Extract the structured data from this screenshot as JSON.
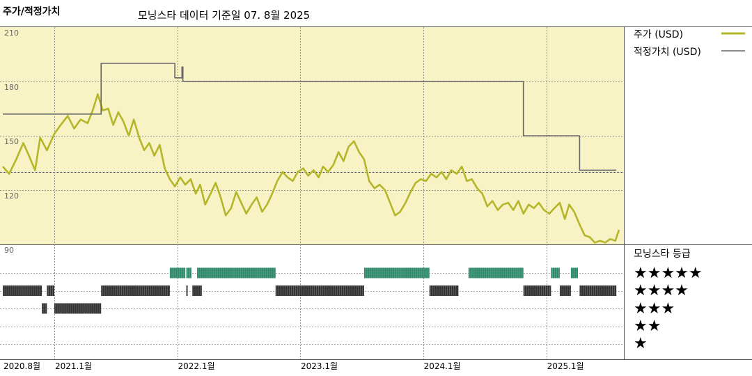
{
  "title": "주가/적정가치",
  "subtitle": "모닝스타 데이터 기준일 07. 8월 2025",
  "chart_data": {
    "type": "line",
    "y_axis": {
      "ticks": [
        "210",
        "180",
        "150",
        "120",
        "90"
      ],
      "ylim": [
        90,
        210
      ],
      "grid": true
    },
    "x_axis": {
      "ticks": [
        {
          "label": "2020.8월",
          "date": "2020-08-01"
        },
        {
          "label": "2021.1월",
          "date": "2021-01-01"
        },
        {
          "label": "2022.1월",
          "date": "2022-01-01"
        },
        {
          "label": "2023.1월",
          "date": "2023-01-01"
        },
        {
          "label": "2024.1월",
          "date": "2024-01-01"
        },
        {
          "label": "2025.1월",
          "date": "2025-01-01"
        }
      ],
      "xlim": [
        "2020-08-01",
        "2025-08-07"
      ]
    },
    "series": [
      {
        "name": "주가 (USD)",
        "color": "#b5b52a",
        "points": [
          [
            "2020-08-01",
            133
          ],
          [
            "2020-08-20",
            129
          ],
          [
            "2020-09-10",
            137
          ],
          [
            "2020-10-01",
            146
          ],
          [
            "2020-10-20",
            138
          ],
          [
            "2020-11-05",
            131
          ],
          [
            "2020-11-20",
            149
          ],
          [
            "2020-12-10",
            142
          ],
          [
            "2021-01-01",
            151
          ],
          [
            "2021-01-20",
            156
          ],
          [
            "2021-02-10",
            161
          ],
          [
            "2021-03-01",
            154
          ],
          [
            "2021-03-20",
            159
          ],
          [
            "2021-04-10",
            157
          ],
          [
            "2021-04-25",
            164
          ],
          [
            "2021-05-10",
            173
          ],
          [
            "2021-05-25",
            164
          ],
          [
            "2021-06-10",
            165
          ],
          [
            "2021-06-25",
            156
          ],
          [
            "2021-07-10",
            163
          ],
          [
            "2021-07-25",
            158
          ],
          [
            "2021-08-10",
            150
          ],
          [
            "2021-08-25",
            159
          ],
          [
            "2021-09-10",
            149
          ],
          [
            "2021-09-25",
            142
          ],
          [
            "2021-10-10",
            146
          ],
          [
            "2021-10-25",
            139
          ],
          [
            "2021-11-10",
            145
          ],
          [
            "2021-11-25",
            132
          ],
          [
            "2021-12-10",
            126
          ],
          [
            "2021-12-25",
            122
          ],
          [
            "2022-01-10",
            127
          ],
          [
            "2022-01-25",
            123
          ],
          [
            "2022-02-10",
            126
          ],
          [
            "2022-02-25",
            118
          ],
          [
            "2022-03-10",
            123
          ],
          [
            "2022-03-25",
            112
          ],
          [
            "2022-04-10",
            118
          ],
          [
            "2022-04-25",
            124
          ],
          [
            "2022-05-10",
            116
          ],
          [
            "2022-05-25",
            106
          ],
          [
            "2022-06-10",
            110
          ],
          [
            "2022-06-25",
            119
          ],
          [
            "2022-07-10",
            113
          ],
          [
            "2022-07-25",
            107
          ],
          [
            "2022-08-10",
            112
          ],
          [
            "2022-08-25",
            116
          ],
          [
            "2022-09-10",
            108
          ],
          [
            "2022-09-25",
            112
          ],
          [
            "2022-10-10",
            118
          ],
          [
            "2022-10-25",
            125
          ],
          [
            "2022-11-10",
            130
          ],
          [
            "2022-11-25",
            127
          ],
          [
            "2022-12-10",
            125
          ],
          [
            "2022-12-25",
            130
          ],
          [
            "2023-01-10",
            132
          ],
          [
            "2023-01-25",
            128
          ],
          [
            "2023-02-10",
            131
          ],
          [
            "2023-02-25",
            127
          ],
          [
            "2023-03-10",
            133
          ],
          [
            "2023-03-25",
            130
          ],
          [
            "2023-04-10",
            134
          ],
          [
            "2023-04-25",
            141
          ],
          [
            "2023-05-10",
            136
          ],
          [
            "2023-05-25",
            144
          ],
          [
            "2023-06-10",
            147
          ],
          [
            "2023-06-25",
            141
          ],
          [
            "2023-07-10",
            137
          ],
          [
            "2023-07-25",
            125
          ],
          [
            "2023-08-10",
            121
          ],
          [
            "2023-08-25",
            123
          ],
          [
            "2023-09-10",
            120
          ],
          [
            "2023-09-25",
            113
          ],
          [
            "2023-10-10",
            106
          ],
          [
            "2023-10-25",
            108
          ],
          [
            "2023-11-10",
            113
          ],
          [
            "2023-11-25",
            119
          ],
          [
            "2023-12-10",
            124
          ],
          [
            "2023-12-25",
            126
          ],
          [
            "2024-01-10",
            125
          ],
          [
            "2024-01-25",
            129
          ],
          [
            "2024-02-10",
            127
          ],
          [
            "2024-02-25",
            130
          ],
          [
            "2024-03-10",
            126
          ],
          [
            "2024-03-25",
            131
          ],
          [
            "2024-04-10",
            129
          ],
          [
            "2024-04-25",
            133
          ],
          [
            "2024-05-10",
            125
          ],
          [
            "2024-05-25",
            126
          ],
          [
            "2024-06-10",
            121
          ],
          [
            "2024-06-25",
            118
          ],
          [
            "2024-07-10",
            111
          ],
          [
            "2024-07-25",
            114
          ],
          [
            "2024-08-10",
            109
          ],
          [
            "2024-08-25",
            112
          ],
          [
            "2024-09-10",
            113
          ],
          [
            "2024-09-25",
            109
          ],
          [
            "2024-10-10",
            114
          ],
          [
            "2024-10-25",
            107
          ],
          [
            "2024-11-10",
            112
          ],
          [
            "2024-11-25",
            110
          ],
          [
            "2024-12-10",
            113
          ],
          [
            "2024-12-25",
            109
          ],
          [
            "2025-01-10",
            107
          ],
          [
            "2025-01-25",
            110
          ],
          [
            "2025-02-10",
            113
          ],
          [
            "2025-02-25",
            104
          ],
          [
            "2025-03-10",
            112
          ],
          [
            "2025-03-25",
            108
          ],
          [
            "2025-04-10",
            101
          ],
          [
            "2025-04-25",
            95
          ],
          [
            "2025-05-10",
            94
          ],
          [
            "2025-05-25",
            91
          ],
          [
            "2025-06-10",
            92
          ],
          [
            "2025-06-25",
            91
          ],
          [
            "2025-07-10",
            93
          ],
          [
            "2025-07-25",
            92
          ],
          [
            "2025-08-05",
            98
          ]
        ]
      },
      {
        "name": "적정가치 (USD)",
        "color": "#666666",
        "step": true,
        "points": [
          [
            "2020-08-01",
            162
          ],
          [
            "2021-05-20",
            162
          ],
          [
            "2021-05-20",
            190
          ],
          [
            "2021-12-25",
            190
          ],
          [
            "2021-12-25",
            182
          ],
          [
            "2022-01-15",
            182
          ],
          [
            "2022-01-15",
            188
          ],
          [
            "2022-01-18",
            188
          ],
          [
            "2022-01-18",
            180
          ],
          [
            "2024-10-25",
            180
          ],
          [
            "2024-10-25",
            150
          ],
          [
            "2025-04-10",
            150
          ],
          [
            "2025-04-10",
            131
          ],
          [
            "2025-07-28",
            131
          ]
        ]
      }
    ],
    "reference_line": {
      "y": 130,
      "style": "dotted"
    }
  },
  "rating": {
    "title": "모닝스타 등급",
    "labels": [
      "★★★★★",
      "★★★★",
      "★★★",
      "★★",
      "★"
    ],
    "bars": [
      {
        "stars": 5,
        "color": "#2e8a6a",
        "periods": [
          [
            "2021-12-10",
            "2022-01-25"
          ],
          [
            "2022-01-28",
            "2022-02-12"
          ],
          [
            "2022-03-01",
            "2022-10-20"
          ],
          [
            "2023-07-10",
            "2024-01-20"
          ],
          [
            "2024-05-15",
            "2024-10-25"
          ],
          [
            "2025-01-15",
            "2025-02-10"
          ],
          [
            "2025-03-15",
            "2025-04-05"
          ]
        ]
      },
      {
        "stars": 4,
        "color": "#333333",
        "periods": [
          [
            "2020-08-01",
            "2020-11-25"
          ],
          [
            "2020-12-10",
            "2021-01-01"
          ],
          [
            "2021-05-20",
            "2021-12-10"
          ],
          [
            "2022-01-28",
            "2022-02-01"
          ],
          [
            "2022-02-15",
            "2022-03-15"
          ],
          [
            "2022-10-20",
            "2023-07-10"
          ],
          [
            "2024-01-20",
            "2024-04-15"
          ],
          [
            "2024-10-25",
            "2025-01-15"
          ],
          [
            "2025-02-10",
            "2025-03-15"
          ],
          [
            "2025-04-10",
            "2025-07-28"
          ]
        ]
      },
      {
        "stars": 3,
        "color": "#333333",
        "periods": [
          [
            "2020-11-25",
            "2020-12-10"
          ],
          [
            "2021-01-01",
            "2021-05-20"
          ]
        ]
      },
      {
        "stars": 2,
        "color": "#333333",
        "periods": []
      },
      {
        "stars": 1,
        "color": "#333333",
        "periods": []
      }
    ]
  }
}
